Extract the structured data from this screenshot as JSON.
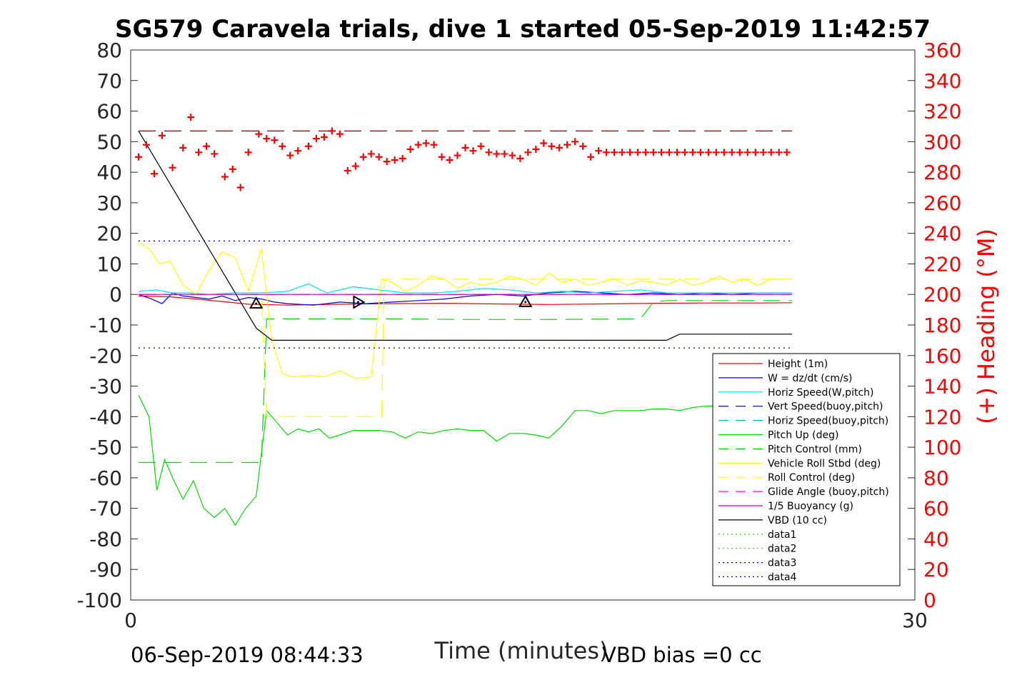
{
  "chart_data": {
    "type": "line",
    "title": "SG579 Caravela trials, dive 1 started 05-Sep-2019 11:42:57",
    "xlabel": "Time (minutes)",
    "ylabel": "",
    "y2label": "(+) Heading (°M)",
    "xlim": [
      0,
      30
    ],
    "ylim": [
      -100,
      80
    ],
    "y2lim": [
      0,
      360
    ],
    "xticks": [
      "0",
      "30"
    ],
    "yticks": [
      "80",
      "70",
      "60",
      "50",
      "40",
      "30",
      "20",
      "10",
      "0",
      "-10",
      "-20",
      "-30",
      "-40",
      "-50",
      "-60",
      "-70",
      "-80",
      "-90",
      "-100"
    ],
    "y2ticks": [
      "360",
      "340",
      "320",
      "300",
      "280",
      "260",
      "240",
      "220",
      "200",
      "180",
      "160",
      "140",
      "120",
      "100",
      "80",
      "60",
      "40",
      "20",
      "0"
    ],
    "grid": false,
    "legend_position": "lower-right",
    "footer_left": "06-Sep-2019 08:44:33",
    "footer_right": "VBD bias =0 cc",
    "series": [
      {
        "name": "Height (1m)",
        "color": "#ff0000",
        "style": "solid",
        "x": [
          0.3,
          1.5,
          2.5,
          3.5,
          4.5,
          6,
          8,
          10,
          12,
          14,
          16,
          18,
          20,
          22,
          24,
          25.3
        ],
        "y": [
          -0.5,
          -0.8,
          -1.5,
          -2.3,
          -3.2,
          -3.5,
          -3.2,
          -3.0,
          -2.9,
          -3.1,
          -3.3,
          -3.1,
          -2.9,
          -2.8,
          -2.8,
          -2.7
        ]
      },
      {
        "name": "W = dz/dt (cm/s)",
        "color": "#0000ff",
        "style": "solid",
        "x": [
          0.3,
          0.8,
          1.2,
          1.6,
          2.0,
          2.5,
          3.0,
          3.5,
          4.0,
          4.5,
          5.0,
          5.5,
          6.0,
          7.0,
          8.0,
          9.0,
          10.0,
          11.0,
          12.0,
          13.0,
          14.0,
          15.0,
          16.0,
          17.0,
          18.0,
          19.0,
          20.0,
          21.0,
          22.0,
          23.0,
          24.0,
          25.3
        ],
        "y": [
          0,
          -1.5,
          -3,
          0.5,
          -0.5,
          -1,
          -1.5,
          -0.5,
          -2,
          -1,
          -1.5,
          -2.5,
          -3,
          -3.5,
          -2.5,
          -3,
          -2.5,
          -2,
          -1.5,
          -0.5,
          0,
          -0.5,
          0.5,
          1,
          0.5,
          0,
          0.5,
          0,
          0.5,
          0,
          0.5,
          0.5
        ]
      },
      {
        "name": "Horiz Speed(W,pitch)",
        "color": "#00e5e5",
        "style": "solid",
        "x": [
          0.3,
          1.0,
          1.6,
          2.2,
          3.0,
          4.0,
          5.0,
          6.0,
          6.8,
          7.5,
          8.5,
          9.5,
          10.5,
          11.5,
          12.5,
          13.5,
          14.5,
          15.5,
          16.5,
          17.5,
          18.5,
          19.5,
          20.5,
          21.5,
          22.5,
          23.5,
          24.5,
          25.3
        ],
        "y": [
          1,
          1.5,
          0.5,
          0.5,
          0,
          0.5,
          0.5,
          1,
          3.5,
          0.5,
          2.5,
          1.5,
          0.5,
          0.5,
          1,
          2,
          1.5,
          0.5,
          1,
          0.5,
          1,
          1.5,
          0.5,
          0.5,
          0.5,
          0.5,
          0.5,
          0.5
        ]
      },
      {
        "name": "Vert Speed(buoy,pitch)",
        "color": "#00008b",
        "style": "dashed",
        "x": [],
        "y": []
      },
      {
        "name": "Horiz Speed(buoy,pitch)",
        "color": "#00bfbf",
        "style": "dashed",
        "x": [],
        "y": []
      },
      {
        "name": "Pitch Up (deg)",
        "color": "#00e000",
        "style": "solid",
        "x": [
          0.3,
          0.7,
          1.0,
          1.3,
          1.6,
          2.0,
          2.4,
          2.8,
          3.2,
          3.6,
          4.0,
          4.4,
          4.8,
          5.2,
          5.6,
          6.0,
          6.4,
          6.8,
          7.2,
          7.6,
          8.0,
          8.5,
          9.0,
          9.5,
          10.0,
          10.5,
          11.0,
          11.5,
          12.0,
          12.5,
          13.0,
          13.5,
          14.0,
          14.5,
          15.0,
          15.5,
          16.0,
          16.5,
          17.0,
          17.5,
          18.0,
          18.5,
          19.0,
          19.5,
          20.0,
          20.5,
          21.0,
          21.5,
          22.0,
          22.5,
          23.0,
          23.5,
          24.0,
          24.5,
          25.0,
          25.3
        ],
        "y": [
          -33,
          -40,
          -64,
          -54,
          -60,
          -67,
          -61,
          -70,
          -73,
          -70,
          -75.5,
          -70,
          -66,
          -38,
          -42,
          -46,
          -44,
          -45,
          -44,
          -47,
          -46,
          -44.5,
          -44.5,
          -44.5,
          -45,
          -47,
          -45,
          -45.5,
          -44.5,
          -44,
          -44.5,
          -44.5,
          -48,
          -45.5,
          -45.5,
          -46,
          -47,
          -43,
          -38,
          -38,
          -39,
          -38,
          -38,
          -38,
          -37.5,
          -37.5,
          -38,
          -37,
          -36.5,
          -36.5,
          -36.5,
          -36.5,
          -36.5,
          -36.5,
          -36.5,
          -36.5
        ]
      },
      {
        "name": "Pitch Control (mm)",
        "color": "#00e000",
        "style": "dashed",
        "x": [
          0.3,
          3.5,
          5.0,
          5.2,
          5.6,
          6.0,
          10.0,
          13.0,
          16.0,
          19.5,
          20.0,
          20.5,
          25.3
        ],
        "y": [
          -55,
          -55,
          -55,
          -8,
          -8,
          -8,
          -8,
          -8.2,
          -8.2,
          -8,
          -2.5,
          -2,
          -2
        ]
      },
      {
        "name": "Vehicle Roll Stbd (deg)",
        "color": "#ffff00",
        "style": "solid",
        "x": [
          0.3,
          0.7,
          1.1,
          1.5,
          2.0,
          2.5,
          3.0,
          3.5,
          4.0,
          4.5,
          5.0,
          5.4,
          5.8,
          6.2,
          6.8,
          7.4,
          8.0,
          8.6,
          9.2,
          9.6,
          10.0,
          10.5,
          11.0,
          11.5,
          12.0,
          12.5,
          13.0,
          13.5,
          14.0,
          14.5,
          15.0,
          15.5,
          16.0,
          16.5,
          17.0,
          17.5,
          18.0,
          18.5,
          19.0,
          19.5,
          20.0,
          20.5,
          21.0,
          21.5,
          22.0,
          22.5,
          23.0,
          23.5,
          24.0,
          24.5,
          25.0,
          25.3
        ],
        "y": [
          17,
          15,
          10,
          11,
          3,
          0,
          8,
          14,
          12,
          1,
          15,
          -15,
          -26,
          -27,
          -26.5,
          -27,
          -25,
          -27.5,
          -27,
          5,
          4,
          1,
          3,
          6,
          5,
          2,
          4,
          3,
          4,
          6,
          5,
          3,
          7,
          4,
          5,
          3,
          4,
          5,
          3,
          4.5,
          4,
          3,
          5,
          3,
          4,
          6,
          4,
          5,
          3,
          5,
          5,
          5
        ]
      },
      {
        "name": "Roll Control (deg)",
        "color": "#ffff00",
        "style": "dashed",
        "x": [
          0.3,
          5.0,
          5.2,
          5.6,
          9.6,
          9.7,
          10.0,
          25.3
        ],
        "y": [
          0,
          0,
          -40,
          -40,
          -40,
          5,
          5,
          5
        ]
      },
      {
        "name": "Glide Angle (buoy,pitch)",
        "color": "#ff00ff",
        "style": "dashed",
        "x": [
          0.3,
          25.3
        ],
        "y": [
          0,
          0
        ]
      },
      {
        "name": "1/5 Buoyancy (g)",
        "color": "#c000c0",
        "style": "solid",
        "x": [
          0.3,
          25.3
        ],
        "y": [
          0,
          0
        ]
      },
      {
        "name": "VBD (10 cc)",
        "color": "#000000",
        "style": "solid",
        "x": [
          0.3,
          4.8,
          5.4,
          6.0,
          20.5,
          21.0,
          25.3
        ],
        "y": [
          53.5,
          -11,
          -15,
          -15,
          -15,
          -13,
          -13
        ]
      },
      {
        "name": "data1",
        "color": "#00e000",
        "style": "dotted",
        "x": [],
        "y": []
      },
      {
        "name": "data2",
        "color": "#00e000",
        "style": "dotted",
        "x": [],
        "y": []
      },
      {
        "name": "data3",
        "color": "#0000aa",
        "style": "dotted",
        "x": [
          0.3,
          25.3
        ],
        "y": [
          17.5,
          17.5
        ]
      },
      {
        "name": "data4",
        "color": "#0000aa",
        "style": "dotted",
        "x": [
          0.3,
          25.3
        ],
        "y": [
          -17.5,
          -17.5
        ]
      }
    ],
    "reference_lines": [
      {
        "color": "#8b0000",
        "style": "dashed",
        "axis": "right",
        "value": 307
      }
    ],
    "heading_points": {
      "color": "#ff0000",
      "marker": "+",
      "x": [
        0.3,
        0.6,
        0.9,
        1.2,
        1.6,
        2.0,
        2.3,
        2.6,
        2.9,
        3.2,
        3.6,
        3.9,
        4.2,
        4.5,
        4.9,
        5.2,
        5.5,
        5.8,
        6.1,
        6.4,
        6.8,
        7.1,
        7.4,
        7.7,
        8.0,
        8.3,
        8.6,
        8.9,
        9.2,
        9.5,
        9.8,
        10.1,
        10.4,
        10.7,
        11.0,
        11.3,
        11.6,
        11.9,
        12.2,
        12.5,
        12.8,
        13.1,
        13.4,
        13.7,
        14.0,
        14.3,
        14.6,
        14.9,
        15.2,
        15.5,
        15.8,
        16.1,
        16.4,
        16.7,
        17.0,
        17.3,
        17.6,
        17.9,
        18.2,
        18.5,
        18.8,
        19.1,
        19.4,
        19.7,
        20.0,
        20.3,
        20.6,
        20.9,
        21.2,
        21.5,
        21.8,
        22.1,
        22.4,
        22.7,
        23.0,
        23.3,
        23.6,
        23.9,
        24.2,
        24.5,
        24.8,
        25.1
      ],
      "y": [
        290,
        298,
        279,
        304,
        283,
        296,
        316,
        293,
        297,
        292,
        277,
        282,
        270,
        293,
        305,
        302,
        301,
        297,
        291,
        294,
        297,
        302,
        303,
        307,
        305,
        281,
        284,
        290,
        292,
        290,
        287,
        288,
        289,
        295,
        298,
        299,
        298,
        290,
        288,
        291,
        296,
        294,
        297,
        293,
        292,
        292,
        291,
        289,
        293,
        295,
        299,
        297,
        296,
        298,
        300,
        297,
        290,
        294,
        293,
        293,
        293,
        293,
        293,
        293,
        293,
        293,
        293,
        293,
        293,
        293,
        293,
        293,
        293,
        293,
        293,
        293,
        293,
        293,
        293,
        293,
        293,
        293
      ]
    },
    "markers": [
      {
        "shape": "triangle-up",
        "x": 4.8,
        "y": -3
      },
      {
        "shape": "triangle-right",
        "x": 8.7,
        "y": -2.5
      },
      {
        "shape": "triangle-up",
        "x": 15.1,
        "y": -2.5
      }
    ]
  }
}
